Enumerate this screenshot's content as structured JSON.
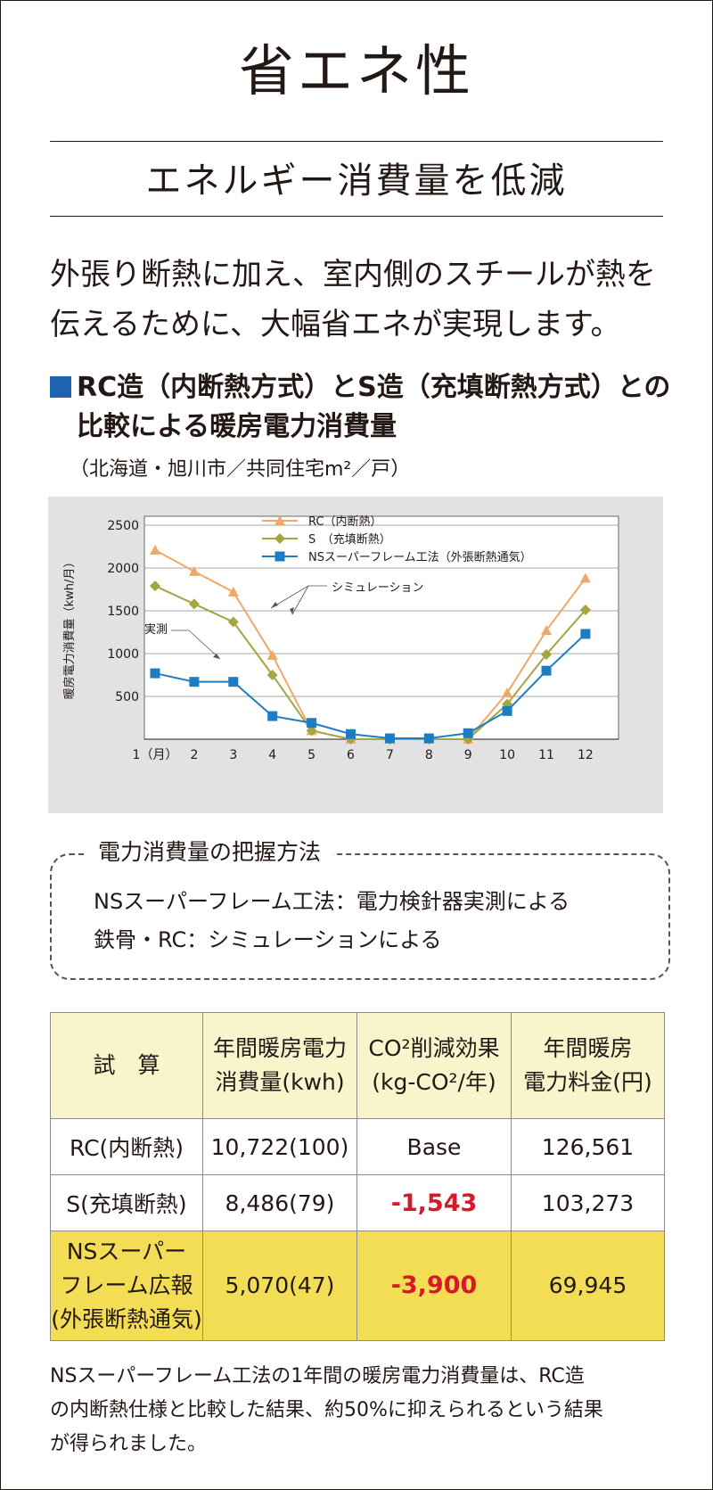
{
  "title": "省エネ性",
  "subtitle": "エネルギー消費量を低減",
  "intro": {
    "line1": "外張り断熱に加え、室内側のスチールが熱を",
    "line2": "伝えるために、大幅省エネが実現します。"
  },
  "heading": {
    "line1": "RC造（内断熱方式）とS造（充填断熱方式）との",
    "line2": "比較による暖房電力消費量"
  },
  "note": "（北海道・旭川市／共同住宅m²／戸）",
  "colors": {
    "rc": "#f0a868",
    "s": "#a5a542",
    "ns": "#1d7dc3",
    "accent_square": "#1d63b0",
    "negative": "#d8192a",
    "table_header": "#faf4cc",
    "table_highlight": "#f2dd55"
  },
  "chart_data": {
    "type": "line",
    "categories": [
      "1（月）",
      "2",
      "3",
      "4",
      "5",
      "6",
      "7",
      "8",
      "9",
      "10",
      "11",
      "12"
    ],
    "series": [
      {
        "name": "RC（内断熱）",
        "values": [
          2210,
          1960,
          1720,
          980,
          100,
          0,
          0,
          0,
          0,
          540,
          1270,
          1880
        ]
      },
      {
        "name": "S　（充填断熱）",
        "values": [
          1790,
          1580,
          1370,
          750,
          100,
          0,
          0,
          0,
          0,
          410,
          990,
          1510
        ]
      },
      {
        "name": "NSスーパーフレーム工法（外張断熱通気）",
        "values": [
          770,
          670,
          670,
          270,
          190,
          60,
          10,
          10,
          70,
          330,
          800,
          1230
        ]
      }
    ],
    "ylabel": "暖房電力消費量（kwh/月）",
    "yticks": [
      "2500",
      "2000",
      "1500",
      "1000",
      "500"
    ],
    "ylim": [
      0,
      2500
    ],
    "grid": true,
    "legend": "top-center",
    "annotations": {
      "simulation": "シミュレーション",
      "measured": "実測"
    }
  },
  "method": {
    "title": "電力消費量の把握方法",
    "line1": "NSスーパーフレーム工法：電力検針器実測による",
    "line2": "鉄骨・RC：シミュレーションによる"
  },
  "table": {
    "headers": {
      "c1": "試　算",
      "c2a": "年間暖房電力",
      "c2b": "消費量(kwh)",
      "c3a": "CO²削減効果",
      "c3b": "(kg-CO²/年)",
      "c4a": "年間暖房",
      "c4b": "電力料金(円)"
    },
    "rows": [
      {
        "label": "RC(内断熱)",
        "consumption": "10,722(100)",
        "co2": "Base",
        "cost": "126,561"
      },
      {
        "label": "S(充填断熱)",
        "consumption": "8,486(79)",
        "co2": "-1,543",
        "cost": "103,273"
      }
    ],
    "ns_row": {
      "label1": "NSスーパー",
      "label2": "フレーム広報",
      "label3": "(外張断熱通気)",
      "consumption": "5,070(47)",
      "co2": "-3,900",
      "cost": "69,945"
    }
  },
  "footer": {
    "line1": "NSスーパーフレーム工法の1年間の暖房電力消費量は、RC造",
    "line2": "の内断熱仕様と比較した結果、約50%に抑えられるという結果",
    "line3": "が得られました。"
  }
}
